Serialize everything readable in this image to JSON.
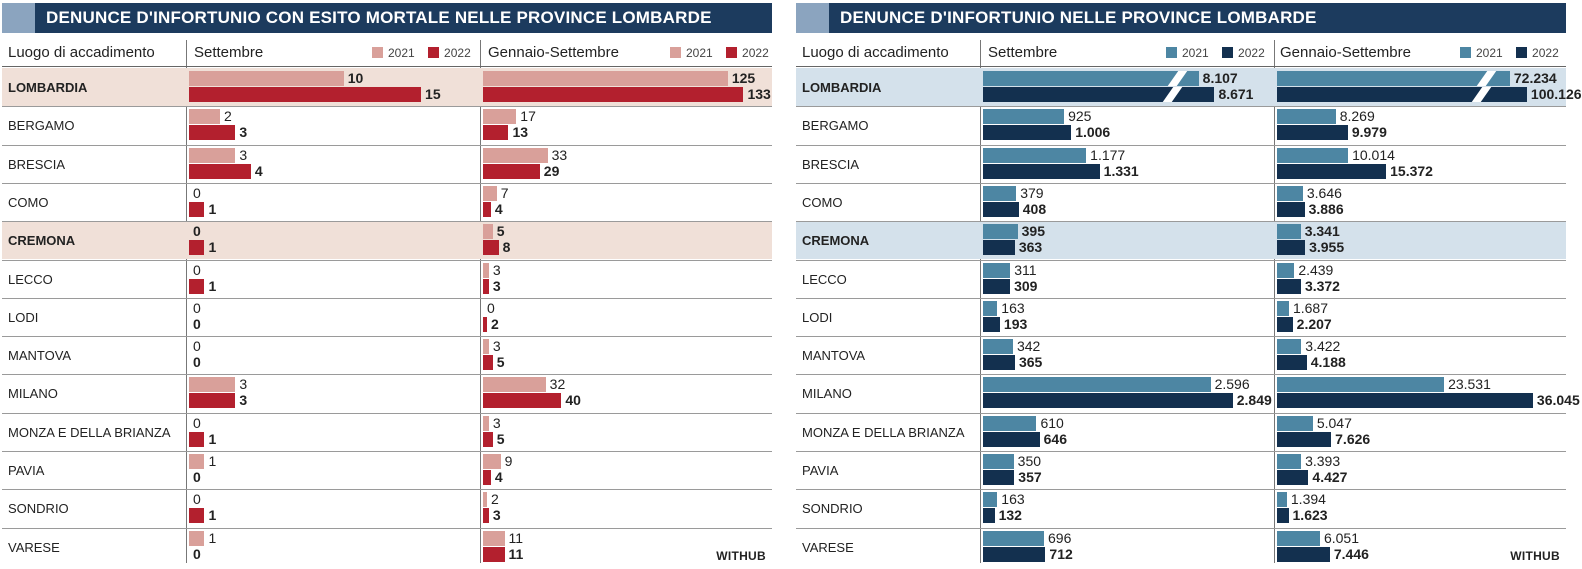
{
  "chart_data": [
    {
      "type": "bar",
      "title": "DENUNCE D'INFORTUNIO CON ESITO MORTALE NELLE PROVINCE LOMBARDE",
      "row_header": "Luogo di accadimento",
      "categories": [
        "LOMBARDIA",
        "BERGAMO",
        "BRESCIA",
        "COMO",
        "CREMONA",
        "LECCO",
        "LODI",
        "MANTOVA",
        "MILANO",
        "MONZA E DELLA BRIANZA",
        "PAVIA",
        "SONDRIO",
        "VARESE"
      ],
      "highlighted": [
        "LOMBARDIA",
        "CREMONA"
      ],
      "legend": [
        "2021",
        "2022"
      ],
      "colors": {
        "2021": "#d9a09a",
        "2022": "#b3202e",
        "highlight_bg": "#f0e0d8"
      },
      "footer": "WITHUB",
      "groups": [
        {
          "name": "Settembre",
          "xlim": [
            0,
            17
          ],
          "series": [
            {
              "name": "2021",
              "values": [
                10,
                2,
                3,
                0,
                0,
                0,
                0,
                0,
                3,
                0,
                1,
                0,
                1
              ],
              "labels": [
                "10",
                "2",
                "3",
                "0",
                "0",
                "0",
                "0",
                "0",
                "3",
                "0",
                "1",
                "0",
                "1"
              ]
            },
            {
              "name": "2022",
              "values": [
                15,
                3,
                4,
                1,
                1,
                1,
                0,
                0,
                3,
                1,
                0,
                1,
                0
              ],
              "labels": [
                "15",
                "3",
                "4",
                "1",
                "1",
                "1",
                "0",
                "0",
                "3",
                "1",
                "0",
                "1",
                "0"
              ]
            }
          ]
        },
        {
          "name": "Gennaio-Settembre",
          "xlim": [
            0,
            145
          ],
          "series": [
            {
              "name": "2021",
              "values": [
                125,
                17,
                33,
                7,
                5,
                3,
                0,
                3,
                32,
                3,
                9,
                2,
                11
              ],
              "labels": [
                "125",
                "17",
                "33",
                "7",
                "5",
                "3",
                "0",
                "3",
                "32",
                "3",
                "9",
                "2",
                "11"
              ]
            },
            {
              "name": "2022",
              "values": [
                133,
                13,
                29,
                4,
                8,
                3,
                2,
                5,
                40,
                5,
                4,
                3,
                11
              ],
              "labels": [
                "133",
                "13",
                "29",
                "4",
                "8",
                "3",
                "2",
                "5",
                "40",
                "5",
                "4",
                "3",
                "11"
              ]
            }
          ]
        }
      ]
    },
    {
      "type": "bar",
      "title": "DENUNCE D'INFORTUNIO NELLE PROVINCE LOMBARDE",
      "row_header": "Luogo di accadimento",
      "categories": [
        "LOMBARDIA",
        "BERGAMO",
        "BRESCIA",
        "COMO",
        "CREMONA",
        "LECCO",
        "LODI",
        "MANTOVA",
        "MILANO",
        "MONZA E DELLA BRIANZA",
        "PAVIA",
        "SONDRIO",
        "VARESE"
      ],
      "highlighted": [
        "LOMBARDIA",
        "CREMONA"
      ],
      "legend": [
        "2021",
        "2022"
      ],
      "colors": {
        "2021": "#4d86a3",
        "2022": "#13304f",
        "highlight_bg": "#d4e1eb"
      },
      "footer": "WITHUB",
      "broken_axis_rows": [
        "LOMBARDIA"
      ],
      "groups": [
        {
          "name": "Settembre",
          "xlim": [
            0,
            3000
          ],
          "series": [
            {
              "name": "2021",
              "values": [
                8107,
                925,
                1177,
                379,
                395,
                311,
                163,
                342,
                2596,
                610,
                350,
                163,
                696
              ],
              "labels": [
                "8.107",
                "925",
                "1.177",
                "379",
                "395",
                "311",
                "163",
                "342",
                "2.596",
                "610",
                "350",
                "163",
                "696"
              ]
            },
            {
              "name": "2022",
              "values": [
                8671,
                1006,
                1331,
                408,
                363,
                309,
                193,
                365,
                2849,
                646,
                357,
                132,
                712
              ],
              "labels": [
                "8.671",
                "1.006",
                "1.331",
                "408",
                "363",
                "309",
                "193",
                "365",
                "2.849",
                "646",
                "357",
                "132",
                "712"
              ]
            }
          ]
        },
        {
          "name": "Gennaio-Settembre",
          "xlim": [
            0,
            40000
          ],
          "series": [
            {
              "name": "2021",
              "values": [
                72234,
                8269,
                10014,
                3646,
                3341,
                2439,
                1687,
                3422,
                23531,
                5047,
                3393,
                1394,
                6051
              ],
              "labels": [
                "72.234",
                "8.269",
                "10.014",
                "3.646",
                "3.341",
                "2.439",
                "1.687",
                "3.422",
                "23.531",
                "5.047",
                "3.393",
                "1.394",
                "6.051"
              ]
            },
            {
              "name": "2022",
              "values": [
                100126,
                9979,
                15372,
                3886,
                3955,
                3372,
                2207,
                4188,
                36045,
                7626,
                4427,
                1623,
                7446
              ],
              "labels": [
                "100.126",
                "9.979",
                "15.372",
                "3.886",
                "3.955",
                "3.372",
                "2.207",
                "4.188",
                "36.045",
                "7.626",
                "4.427",
                "1.623",
                "7.446"
              ]
            }
          ]
        }
      ]
    }
  ]
}
